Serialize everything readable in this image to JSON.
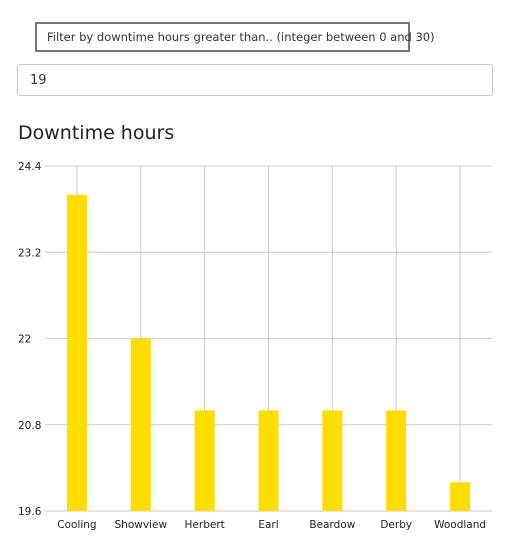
{
  "filter": {
    "label": "Filter by downtime hours greater than.. (integer between 0 and 30)",
    "value": "19"
  },
  "chart_data": {
    "type": "bar",
    "title": "Downtime hours",
    "categories": [
      "Cooling",
      "Showview",
      "Herbert",
      "Earl",
      "Beardow",
      "Derby",
      "Woodland"
    ],
    "values": [
      24,
      22,
      21,
      21,
      21,
      21,
      20
    ],
    "ylim": [
      19.6,
      24.4
    ],
    "yticks": [
      "19.6",
      "20.8",
      "22",
      "23.2",
      "24.4"
    ],
    "grid": true,
    "bar_color": "#ffdd00",
    "grid_color": "#cccccc"
  }
}
